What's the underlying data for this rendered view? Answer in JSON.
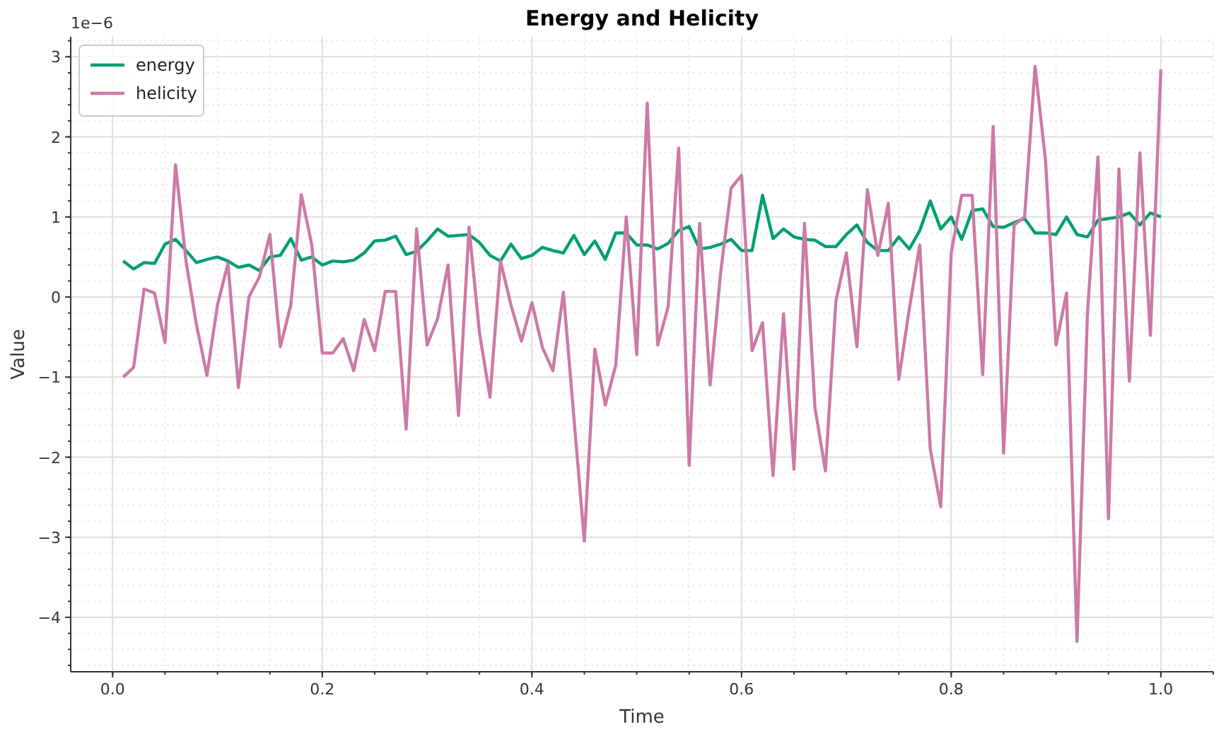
{
  "chart_data": {
    "type": "line",
    "title": "Energy and Helicity",
    "xlabel": "Time",
    "ylabel": "Value",
    "annotations": [
      "1e−6"
    ],
    "x": [
      0.01,
      0.02,
      0.03,
      0.04,
      0.05,
      0.06,
      0.07,
      0.08,
      0.09,
      0.1,
      0.11,
      0.12,
      0.13,
      0.14,
      0.15,
      0.16,
      0.17,
      0.18,
      0.19,
      0.2,
      0.21,
      0.22,
      0.23,
      0.24,
      0.25,
      0.26,
      0.27,
      0.28,
      0.29,
      0.3,
      0.31,
      0.32,
      0.33,
      0.34,
      0.35,
      0.36,
      0.37,
      0.38,
      0.39,
      0.4,
      0.41,
      0.42,
      0.43,
      0.44,
      0.45,
      0.46,
      0.47,
      0.48,
      0.49,
      0.5,
      0.51,
      0.52,
      0.53,
      0.54,
      0.55,
      0.56,
      0.57,
      0.58,
      0.59,
      0.6,
      0.61,
      0.62,
      0.63,
      0.64,
      0.65,
      0.66,
      0.67,
      0.68,
      0.69,
      0.7,
      0.71,
      0.72,
      0.73,
      0.74,
      0.75,
      0.76,
      0.77,
      0.78,
      0.79,
      0.8,
      0.81,
      0.82,
      0.83,
      0.84,
      0.85,
      0.86,
      0.87,
      0.88,
      0.89,
      0.9,
      0.91,
      0.92,
      0.93,
      0.94,
      0.95,
      0.96,
      0.97,
      0.98,
      0.99,
      1.0
    ],
    "series": [
      {
        "name": "energy",
        "color": "#009e73",
        "values": [
          0.45,
          0.35,
          0.43,
          0.42,
          0.66,
          0.72,
          0.58,
          0.43,
          0.47,
          0.5,
          0.45,
          0.37,
          0.4,
          0.33,
          0.5,
          0.52,
          0.73,
          0.46,
          0.5,
          0.4,
          0.45,
          0.44,
          0.46,
          0.55,
          0.7,
          0.71,
          0.76,
          0.53,
          0.57,
          0.7,
          0.85,
          0.76,
          0.77,
          0.78,
          0.68,
          0.52,
          0.45,
          0.66,
          0.48,
          0.52,
          0.62,
          0.58,
          0.55,
          0.77,
          0.53,
          0.7,
          0.47,
          0.8,
          0.8,
          0.65,
          0.65,
          0.6,
          0.67,
          0.83,
          0.88,
          0.6,
          0.62,
          0.66,
          0.72,
          0.58,
          0.58,
          1.27,
          0.73,
          0.85,
          0.75,
          0.72,
          0.71,
          0.63,
          0.63,
          0.78,
          0.9,
          0.68,
          0.58,
          0.58,
          0.75,
          0.6,
          0.83,
          1.2,
          0.85,
          1.0,
          0.72,
          1.08,
          1.1,
          0.88,
          0.87,
          0.93,
          0.98,
          0.8,
          0.8,
          0.78,
          1.0,
          0.78,
          0.75,
          0.96,
          0.98,
          1.0,
          1.05,
          0.9,
          1.05,
          1.0
        ]
      },
      {
        "name": "helicity",
        "color": "#cc79a7",
        "values": [
          -1.0,
          -0.88,
          0.1,
          0.05,
          -0.57,
          1.65,
          0.45,
          -0.35,
          -0.98,
          -0.1,
          0.42,
          -1.13,
          0.0,
          0.25,
          0.78,
          -0.62,
          -0.1,
          1.28,
          0.65,
          -0.7,
          -0.7,
          -0.52,
          -0.92,
          -0.28,
          -0.67,
          0.07,
          0.07,
          -1.65,
          0.85,
          -0.6,
          -0.27,
          0.4,
          -1.48,
          0.87,
          -0.45,
          -1.25,
          0.45,
          -0.1,
          -0.55,
          -0.07,
          -0.63,
          -0.92,
          0.06,
          -1.5,
          -3.05,
          -0.65,
          -1.35,
          -0.85,
          1.0,
          -0.72,
          2.42,
          -0.6,
          -0.12,
          1.86,
          -2.1,
          0.92,
          -1.1,
          0.3,
          1.36,
          1.52,
          -0.67,
          -0.32,
          -2.23,
          -0.21,
          -2.15,
          0.92,
          -1.38,
          -2.17,
          -0.05,
          0.55,
          -0.62,
          1.34,
          0.52,
          1.17,
          -1.03,
          -0.15,
          0.65,
          -1.9,
          -2.62,
          0.55,
          1.27,
          1.27,
          -0.97,
          2.13,
          -1.95,
          0.9,
          1.0,
          2.88,
          1.7,
          -0.6,
          0.05,
          -4.3,
          -0.2,
          1.75,
          -2.77,
          1.6,
          -1.05,
          1.8,
          -0.48,
          2.84
        ]
      }
    ],
    "xlim": [
      -0.04,
      1.05
    ],
    "ylim": [
      -4.68,
      3.25
    ],
    "xticks": [
      {
        "value": 0,
        "label": "0.0"
      },
      {
        "value": 0.2,
        "label": "0.2"
      },
      {
        "value": 0.4,
        "label": "0.4"
      },
      {
        "value": 0.6,
        "label": "0.6"
      },
      {
        "value": 0.8,
        "label": "0.8"
      },
      {
        "value": 1,
        "label": "1.0"
      }
    ],
    "yticks": [
      {
        "value": -4,
        "label": "−4"
      },
      {
        "value": -3,
        "label": "−3"
      },
      {
        "value": -2,
        "label": "−2"
      },
      {
        "value": -1,
        "label": "−1"
      },
      0,
      1,
      2,
      3
    ],
    "grid": true,
    "legend": "top left",
    "marker": "none",
    "line_style": "solid"
  }
}
